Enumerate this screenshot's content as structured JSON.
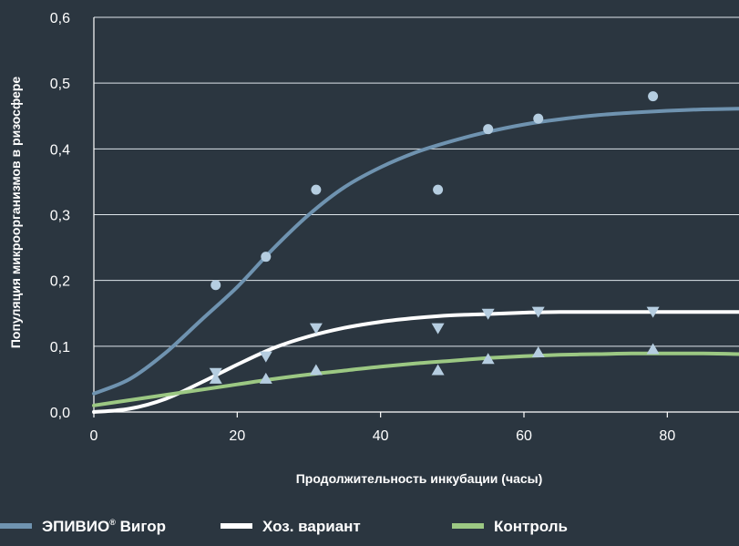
{
  "chart_data": {
    "type": "scatter",
    "xlabel": "Продолжительность инкубации (часы)",
    "ylabel": "Популяция микроорганизмов в ризосфере",
    "xlim": [
      0,
      90
    ],
    "ylim": [
      0,
      0.6
    ],
    "x_ticks": [
      0,
      20,
      40,
      60,
      80
    ],
    "x_tick_labels": [
      "0",
      "20",
      "40",
      "60",
      "80"
    ],
    "y_ticks": [
      0,
      0.1,
      0.2,
      0.3,
      0.4,
      0.5,
      0.6
    ],
    "y_tick_labels": [
      "0,0",
      "0,1",
      "0,2",
      "0,3",
      "0,4",
      "0,5",
      "0,6"
    ],
    "grid": "horizontal",
    "legend_position": "bottom",
    "series": [
      {
        "name": "ЭПИВИО",
        "name_sup": "®",
        "name_suffix": " Вигор",
        "color": "#6f93b0",
        "marker_color": "#b5cde0",
        "marker": "circle",
        "points": [
          [
            17,
            0.193
          ],
          [
            24,
            0.236
          ],
          [
            31,
            0.338
          ],
          [
            48,
            0.338
          ],
          [
            55,
            0.43
          ],
          [
            62,
            0.446
          ],
          [
            78,
            0.48
          ]
        ],
        "curve": [
          [
            0,
            0.028
          ],
          [
            5,
            0.05
          ],
          [
            10,
            0.09
          ],
          [
            15,
            0.14
          ],
          [
            20,
            0.19
          ],
          [
            25,
            0.248
          ],
          [
            30,
            0.3
          ],
          [
            35,
            0.342
          ],
          [
            40,
            0.372
          ],
          [
            45,
            0.395
          ],
          [
            50,
            0.412
          ],
          [
            55,
            0.426
          ],
          [
            60,
            0.437
          ],
          [
            65,
            0.445
          ],
          [
            70,
            0.451
          ],
          [
            75,
            0.455
          ],
          [
            80,
            0.458
          ],
          [
            85,
            0.46
          ],
          [
            90,
            0.461
          ]
        ]
      },
      {
        "name": "Хоз. вариант",
        "color": "#ffffff",
        "marker_color": "#b5cde0",
        "marker": "triangle-down",
        "points": [
          [
            17,
            0.06
          ],
          [
            24,
            0.085
          ],
          [
            31,
            0.128
          ],
          [
            48,
            0.128
          ],
          [
            55,
            0.15
          ],
          [
            62,
            0.153
          ],
          [
            78,
            0.153
          ]
        ],
        "curve": [
          [
            0,
            0.0
          ],
          [
            5,
            0.005
          ],
          [
            10,
            0.02
          ],
          [
            15,
            0.045
          ],
          [
            20,
            0.072
          ],
          [
            25,
            0.097
          ],
          [
            30,
            0.115
          ],
          [
            35,
            0.128
          ],
          [
            40,
            0.137
          ],
          [
            45,
            0.143
          ],
          [
            50,
            0.147
          ],
          [
            55,
            0.149
          ],
          [
            60,
            0.151
          ],
          [
            65,
            0.152
          ],
          [
            70,
            0.152
          ],
          [
            75,
            0.152
          ],
          [
            80,
            0.152
          ],
          [
            85,
            0.152
          ],
          [
            90,
            0.152
          ]
        ]
      },
      {
        "name": "Контроль",
        "color": "#9cc883",
        "marker_color": "#b5cde0",
        "marker": "triangle-up",
        "points": [
          [
            17,
            0.05
          ],
          [
            24,
            0.05
          ],
          [
            31,
            0.063
          ],
          [
            48,
            0.063
          ],
          [
            55,
            0.08
          ],
          [
            62,
            0.09
          ],
          [
            78,
            0.095
          ]
        ],
        "curve": [
          [
            0,
            0.01
          ],
          [
            5,
            0.018
          ],
          [
            10,
            0.026
          ],
          [
            15,
            0.034
          ],
          [
            20,
            0.042
          ],
          [
            25,
            0.05
          ],
          [
            30,
            0.057
          ],
          [
            35,
            0.063
          ],
          [
            40,
            0.069
          ],
          [
            45,
            0.074
          ],
          [
            50,
            0.078
          ],
          [
            55,
            0.082
          ],
          [
            60,
            0.085
          ],
          [
            65,
            0.087
          ],
          [
            70,
            0.088
          ],
          [
            75,
            0.089
          ],
          [
            80,
            0.089
          ],
          [
            85,
            0.089
          ],
          [
            90,
            0.088
          ]
        ]
      }
    ]
  }
}
